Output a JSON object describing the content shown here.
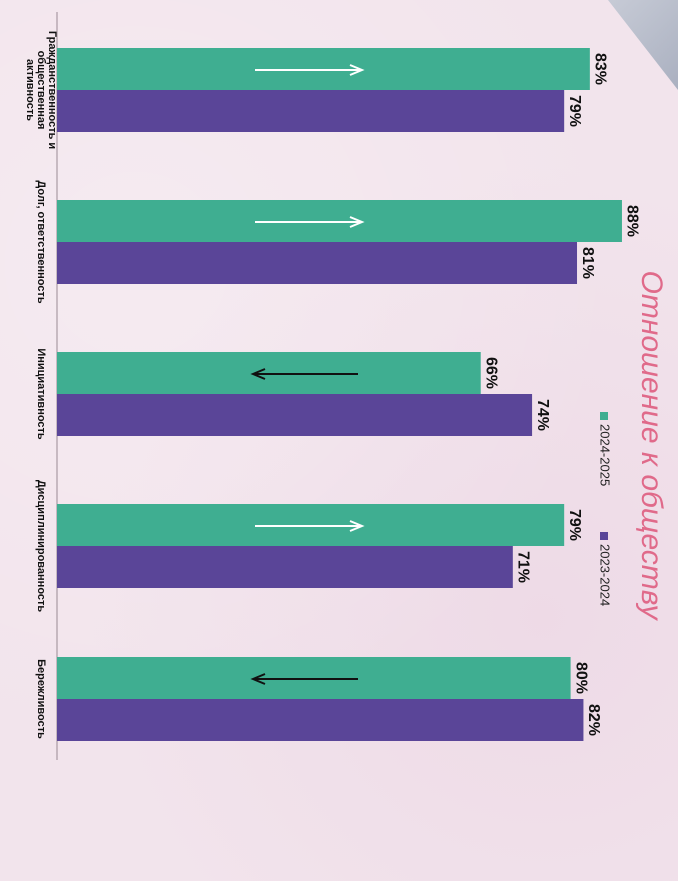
{
  "colors": {
    "series_2024_2025": "#3fae91",
    "series_2023_2024": "#5a4598",
    "title": "#e06a8a",
    "arrow_up": "#ffffff",
    "arrow_down": "#111111"
  },
  "chart_data": {
    "type": "bar",
    "orientation": "horizontal bars, page rotated 90° clockwise",
    "title": "Отношение к обществу",
    "categories": [
      "Гражданственность и общественная активность",
      "Долг, ответственность",
      "Инициативность",
      "Дисциплинированность",
      "Бережливость"
    ],
    "series": [
      {
        "name": "2024-2025",
        "values": [
          83,
          88,
          66,
          79,
          80
        ],
        "value_labels": [
          "83%",
          "88%",
          "66%",
          "79%",
          "80%"
        ]
      },
      {
        "name": "2023-2024",
        "values": [
          79,
          81,
          74,
          71,
          82
        ],
        "value_labels": [
          "79%",
          "81%",
          "74%",
          "71%",
          "82%"
        ]
      }
    ],
    "trend_arrows": [
      "up",
      "up",
      "down",
      "up",
      "down"
    ],
    "xlim": [
      0,
      100
    ],
    "legend_position": "right",
    "grid": false
  }
}
